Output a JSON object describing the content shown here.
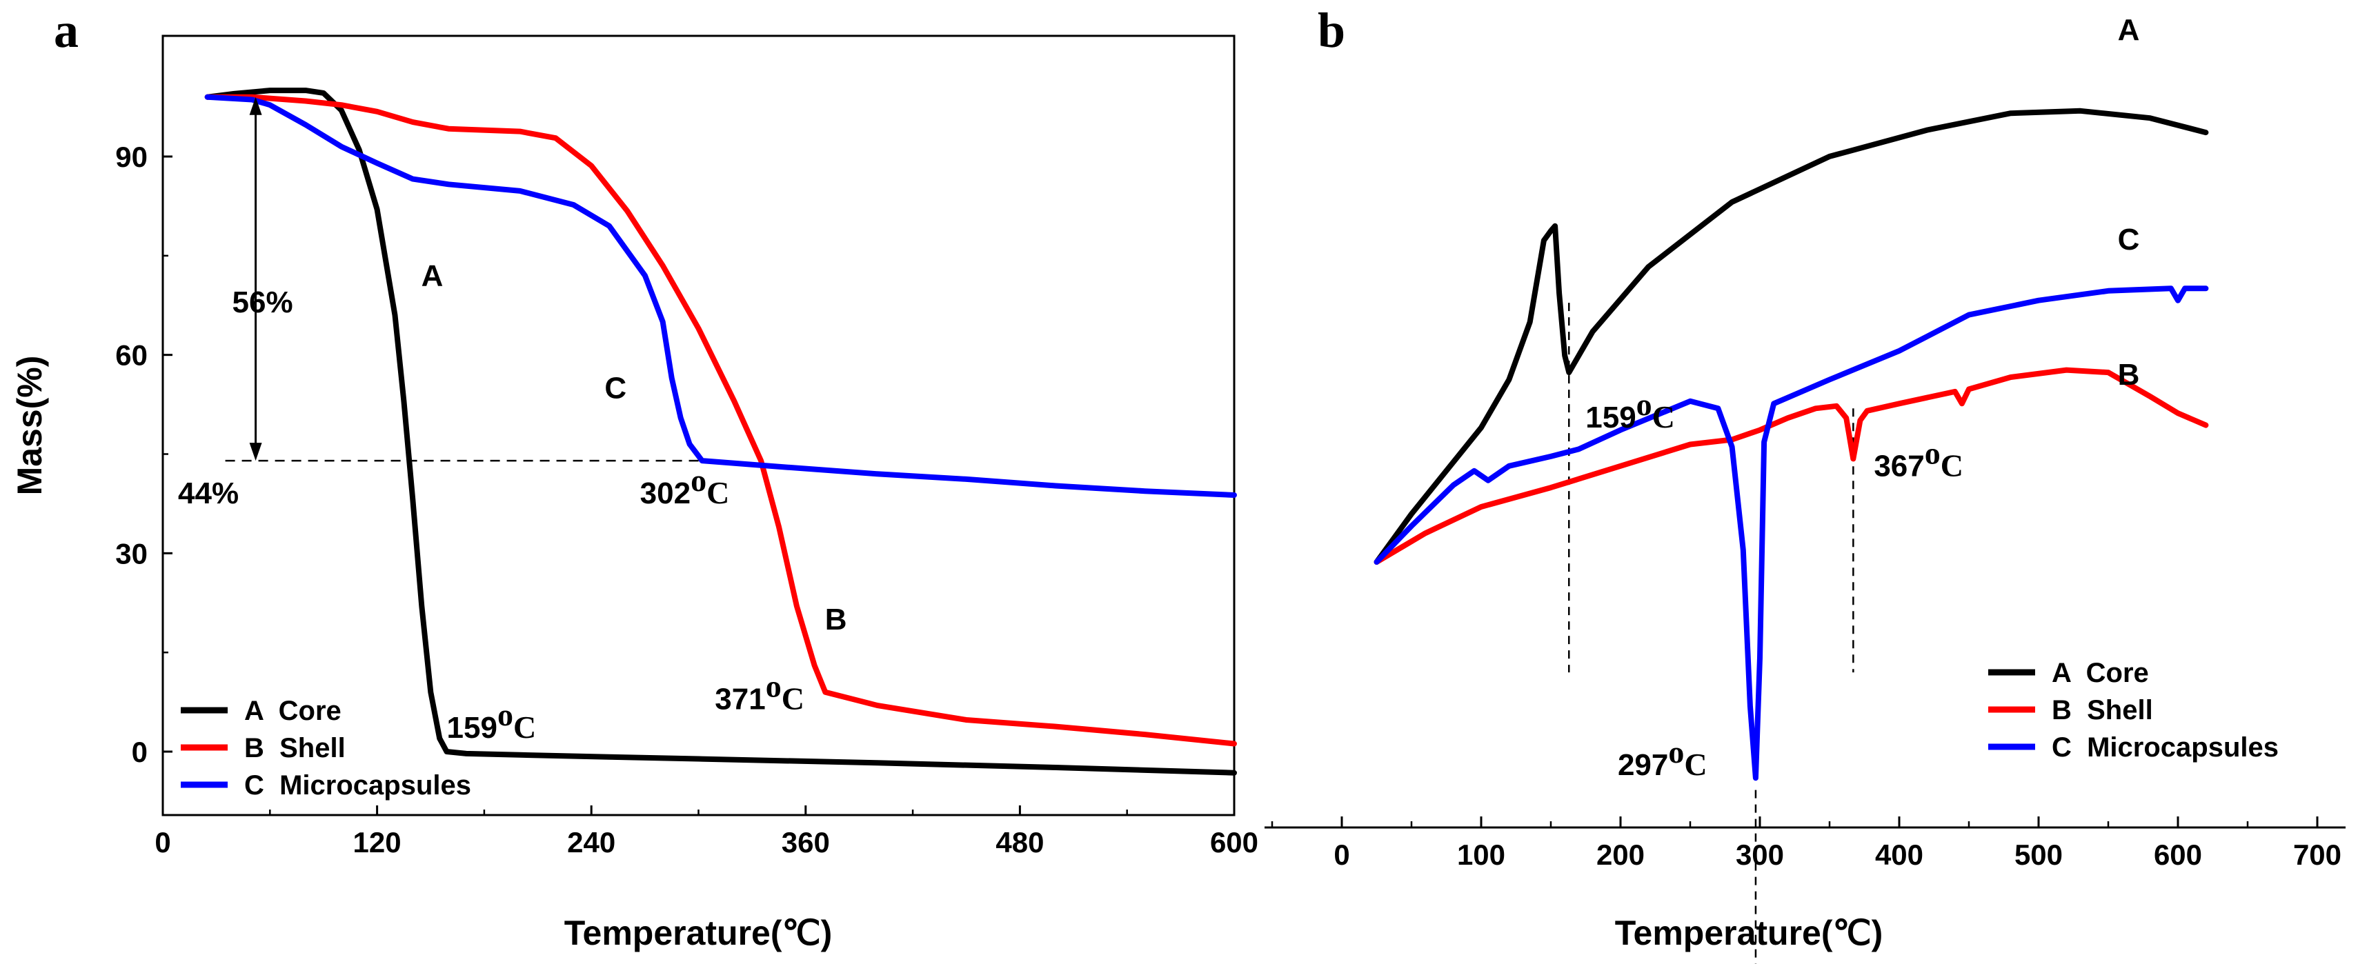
{
  "chart_data": [
    {
      "panel_label": "a",
      "type": "line",
      "xlabel": "Temperature(℃)",
      "ylabel": "Mass(%)",
      "xlim": [
        0,
        600
      ],
      "ylim": [
        -10,
        100
      ],
      "x_ticks": [
        0,
        120,
        240,
        360,
        480,
        600
      ],
      "y_ticks": [
        0,
        30,
        60,
        90
      ],
      "grid": false,
      "legend_position": "bottom-left",
      "series": [
        {
          "name": "A  Core",
          "color": "#000000",
          "x": [
            25,
            40,
            60,
            80,
            90,
            100,
            110,
            120,
            130,
            135,
            140,
            145,
            150,
            155,
            159,
            170,
            200,
            250,
            300,
            400,
            500,
            600
          ],
          "y": [
            99,
            99.5,
            100,
            100,
            99.6,
            97,
            91,
            82,
            66,
            53,
            38,
            22,
            9,
            2,
            0,
            -0.3,
            -0.5,
            -0.8,
            -1.1,
            -1.7,
            -2.4,
            -3.2
          ]
        },
        {
          "name": "B  Shell",
          "color": "#ff0000",
          "x": [
            25,
            50,
            80,
            100,
            120,
            140,
            160,
            200,
            220,
            240,
            260,
            280,
            300,
            320,
            335,
            345,
            355,
            365,
            371,
            400,
            450,
            500,
            550,
            600
          ],
          "y": [
            99,
            99,
            98.4,
            97.8,
            96.8,
            95.2,
            94.2,
            93.8,
            92.8,
            88.6,
            81.8,
            73.5,
            64,
            53,
            44,
            34,
            22,
            13,
            9,
            7,
            4.8,
            3.8,
            2.6,
            1.2
          ]
        },
        {
          "name": "C  Microcapsules",
          "color": "#0000ff",
          "x": [
            25,
            50,
            60,
            80,
            100,
            120,
            140,
            160,
            200,
            230,
            250,
            270,
            280,
            285,
            290,
            295,
            302,
            350,
            400,
            450,
            500,
            550,
            600
          ],
          "y": [
            99,
            98.6,
            97.8,
            94.8,
            91.5,
            89,
            86.6,
            85.8,
            84.8,
            82.7,
            79.5,
            72,
            65,
            56.5,
            50.5,
            46.5,
            44,
            43,
            42,
            41.2,
            40.2,
            39.4,
            38.8
          ]
        }
      ],
      "annotations": [
        {
          "text": "A",
          "x": 137,
          "y": 72
        },
        {
          "text": "B",
          "x": 365,
          "y": 20
        },
        {
          "text": "C",
          "x": 242,
          "y": 55
        },
        {
          "text": "56%",
          "x": 52,
          "y": 68
        },
        {
          "text": "44%",
          "x": 5,
          "y": 44
        },
        {
          "text": "302ºC",
          "x": 302,
          "y": 44
        },
        {
          "text": "371ºC",
          "x": 371,
          "y": 9
        },
        {
          "text": "159ºC",
          "x": 159,
          "y": 0
        }
      ]
    },
    {
      "panel_label": "b",
      "type": "line",
      "xlabel": "Temperature(℃)",
      "ylabel": "",
      "xlim": [
        -50,
        700
      ],
      "x_ticks": [
        0,
        100,
        200,
        300,
        400,
        500,
        600,
        700
      ],
      "y_axis_shown": false,
      "grid": false,
      "legend_position": "bottom-right",
      "series": [
        {
          "name": "A  Core",
          "color": "#000000",
          "x": [
            25,
            50,
            75,
            100,
            120,
            135,
            145,
            150,
            153,
            156,
            160,
            163,
            180,
            220,
            280,
            350,
            420,
            480,
            530,
            580,
            620
          ],
          "y": [
            0,
            20,
            38,
            56,
            76,
            100,
            134,
            138,
            140,
            112,
            86,
            79,
            96,
            123,
            150,
            169,
            180,
            187,
            188,
            185,
            179
          ]
        },
        {
          "name": "B  Shell",
          "color": "#ff0000",
          "x": [
            25,
            60,
            100,
            150,
            200,
            250,
            280,
            300,
            320,
            340,
            355,
            362,
            367,
            372,
            377,
            400,
            440,
            445,
            450,
            480,
            520,
            550,
            580,
            600,
            620
          ],
          "y": [
            0,
            12,
            23,
            31,
            40,
            49,
            51,
            55,
            60,
            64,
            65,
            60,
            43,
            59,
            63,
            66,
            71,
            66,
            72,
            77,
            80,
            79,
            69,
            62,
            57
          ]
        },
        {
          "name": "C  Microcapsules",
          "color": "#0000ff",
          "x": [
            25,
            50,
            80,
            95,
            105,
            120,
            150,
            170,
            200,
            250,
            270,
            280,
            288,
            293,
            297,
            300,
            303,
            310,
            350,
            400,
            450,
            500,
            550,
            595,
            600,
            605,
            620
          ],
          "y": [
            0,
            15,
            32,
            38,
            34,
            40,
            44,
            47,
            55,
            67,
            64,
            48,
            5,
            -60,
            -90,
            -40,
            50,
            66,
            76,
            88,
            103,
            109,
            113,
            114,
            109,
            114,
            114
          ]
        }
      ],
      "annotations": [
        {
          "text": "A",
          "x": 525,
          "y": 205
        },
        {
          "text": "B",
          "x": 525,
          "y": 55
        },
        {
          "text": "C",
          "x": 525,
          "y": 128
        },
        {
          "text": "159ºC",
          "x": 163,
          "y": 79
        },
        {
          "text": "367ºC",
          "x": 367,
          "y": 43
        },
        {
          "text": "297ºC",
          "x": 297,
          "y": -90
        }
      ]
    }
  ]
}
